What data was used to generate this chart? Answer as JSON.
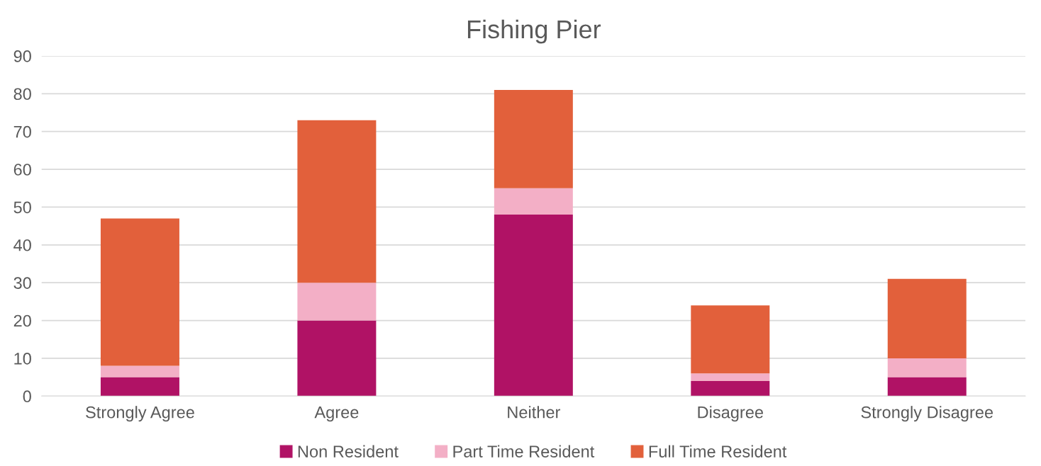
{
  "chart_data": {
    "type": "bar",
    "title": "Fishing Pier",
    "stacked": true,
    "categories": [
      "Strongly Agree",
      "Agree",
      "Neither",
      "Disagree",
      "Strongly Disagree"
    ],
    "series": [
      {
        "name": "Non Resident",
        "color": "#b01265",
        "values": [
          5,
          20,
          48,
          4,
          5
        ]
      },
      {
        "name": "Part Time Resident",
        "color": "#f3afc6",
        "values": [
          3,
          10,
          7,
          2,
          5
        ]
      },
      {
        "name": "Full Time Resident",
        "color": "#e2603b",
        "values": [
          39,
          43,
          26,
          18,
          21
        ]
      }
    ],
    "ylim": [
      0,
      90
    ],
    "yticks": [
      0,
      10,
      20,
      30,
      40,
      50,
      60,
      70,
      80,
      90
    ],
    "grid": "y",
    "legend": "bottom"
  }
}
